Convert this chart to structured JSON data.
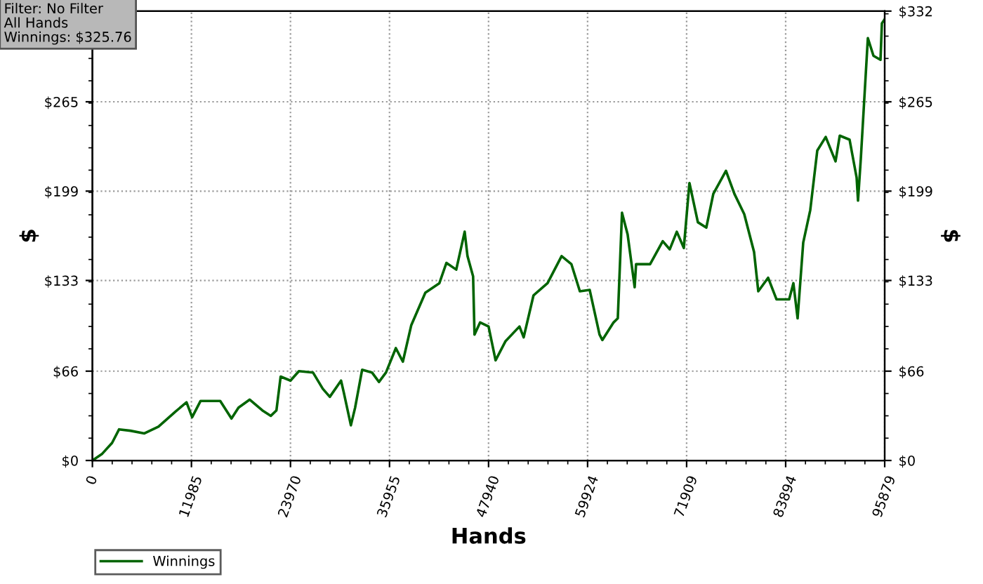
{
  "chart_data": {
    "type": "line",
    "xlabel": "Hands",
    "ylabel": "$",
    "y2label": "$",
    "annotations": [
      "Filter: No Filter",
      "All Hands",
      "Winnings: $325.76"
    ],
    "xlim": [
      0,
      95879
    ],
    "xticks": [
      0,
      11985,
      23970,
      35955,
      47940,
      59924,
      71909,
      83894,
      95879
    ],
    "ylim": [
      0,
      332
    ],
    "yticks": [
      {
        "value": 0,
        "label": "$0"
      },
      {
        "value": 66,
        "label": "$66"
      },
      {
        "value": 133,
        "label": "$133"
      },
      {
        "value": 199,
        "label": "$199"
      },
      {
        "value": 265,
        "label": "$265"
      },
      {
        "value": 332,
        "label": null
      }
    ],
    "y2lim": [
      0,
      332
    ],
    "y2ticks": [
      {
        "value": 0,
        "label": "$0"
      },
      {
        "value": 66,
        "label": "$66"
      },
      {
        "value": 133,
        "label": "$133"
      },
      {
        "value": 199,
        "label": "$199"
      },
      {
        "value": 265,
        "label": "$265"
      },
      {
        "value": 332,
        "label": "$332"
      }
    ],
    "grid": true,
    "legend": "bottom left",
    "marker": "none",
    "line_style": "solid",
    "series": [
      {
        "name": "Winnings",
        "color": "#006400",
        "x": [
          0,
          1190,
          2380,
          3230,
          4590,
          6290,
          7990,
          10030,
          11390,
          12070,
          13090,
          15470,
          16830,
          17680,
          19040,
          20570,
          21590,
          22270,
          22780,
          23970,
          24990,
          26690,
          27880,
          28730,
          30090,
          30430,
          31280,
          31790,
          32640,
          33830,
          34680,
          35530,
          36720,
          37570,
          38590,
          40290,
          41990,
          42840,
          44030,
          45050,
          45390,
          46070,
          46240,
          46920,
          47940,
          48790,
          49980,
          51680,
          52190,
          53380,
          55080,
          56780,
          57970,
          58990,
          60180,
          61370,
          61710,
          63070,
          63580,
          64090,
          64770,
          65620,
          65790,
          67490,
          69020,
          69870,
          70720,
          71570,
          72250,
          73270,
          74290,
          75140,
          76670,
          77690,
          78880,
          80070,
          80580,
          81770,
          82790,
          84320,
          84830,
          85340,
          86020,
          86870,
          87720,
          88740,
          89930,
          90440,
          91630,
          92480,
          92650,
          92990,
          93840,
          94520,
          95370,
          95540,
          95879
        ],
        "values": [
          0,
          5,
          13,
          23,
          22,
          20,
          25,
          36,
          43,
          32,
          44,
          44,
          31,
          39,
          45,
          37,
          33,
          37,
          62,
          59,
          66,
          65,
          53,
          47,
          59,
          50,
          26,
          39,
          67,
          65,
          58,
          65,
          83,
          73,
          100,
          124,
          131,
          146,
          141,
          169,
          151,
          136,
          93,
          102,
          99,
          74,
          88,
          99,
          91,
          122,
          131,
          151,
          145,
          125,
          126,
          93,
          89,
          102,
          105,
          183,
          167,
          128,
          145,
          145,
          162,
          156,
          169,
          157,
          205,
          176,
          172,
          197,
          214,
          197,
          182,
          154,
          125,
          135,
          119,
          119,
          131,
          105,
          161,
          185,
          229,
          239,
          221,
          240,
          237,
          209,
          192,
          223,
          312,
          299,
          296,
          323,
          326
        ]
      }
    ]
  }
}
